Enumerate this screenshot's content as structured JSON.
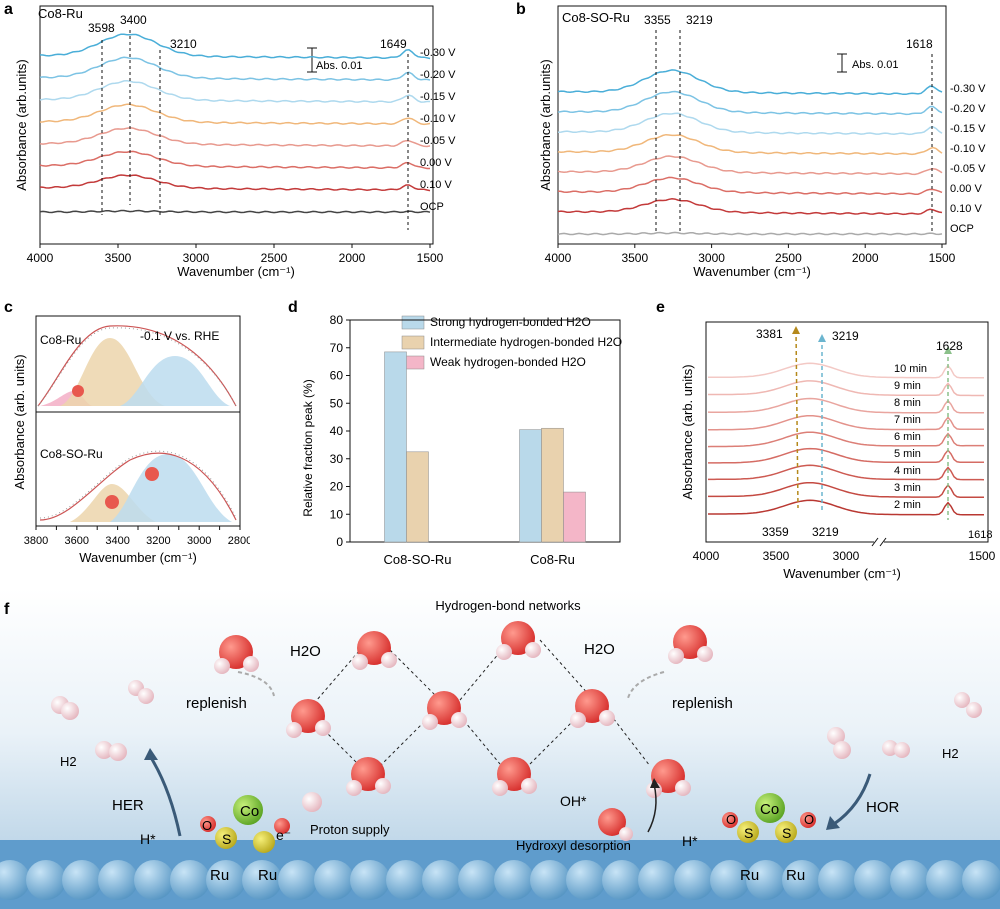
{
  "panels": {
    "a": {
      "label": "a",
      "sample": "Co8-Ru",
      "peaks": [
        "3598",
        "3400",
        "3210",
        "1649"
      ],
      "scale": "Abs. 0.01",
      "curves": [
        {
          "label": "-0.30 V",
          "color": "#4aaed8"
        },
        {
          "label": "-0.20 V",
          "color": "#7cc3e4"
        },
        {
          "label": "-0.15 V",
          "color": "#aed9ee"
        },
        {
          "label": "-0.10 V",
          "color": "#f0b77a"
        },
        {
          "label": "-0.05 V",
          "color": "#e89a8f"
        },
        {
          "label": "0.00 V",
          "color": "#db6e66"
        },
        {
          "label": "0.10 V",
          "color": "#c33a3a"
        },
        {
          "label": "OCP",
          "color": "#444444"
        }
      ],
      "xticks": [
        "4000",
        "3500",
        "3000",
        "2500",
        "2000",
        "1500"
      ],
      "xlabel": "Wavenumber (cm⁻¹)",
      "ylabel": "Absorbance (arb.units)"
    },
    "b": {
      "label": "b",
      "sample": "Co8-SO-Ru",
      "peaks": [
        "3355",
        "3219",
        "1618"
      ],
      "scale": "Abs. 0.01",
      "curves": [
        {
          "label": "-0.30 V",
          "color": "#4aaed8"
        },
        {
          "label": "-0.20 V",
          "color": "#7cc3e4"
        },
        {
          "label": "-0.15 V",
          "color": "#aed9ee"
        },
        {
          "label": "-0.10 V",
          "color": "#f0b77a"
        },
        {
          "label": "-0.05 V",
          "color": "#e89a8f"
        },
        {
          "label": "0.00 V",
          "color": "#db6e66"
        },
        {
          "label": "0.10 V",
          "color": "#c33a3a"
        },
        {
          "label": "OCP",
          "color": "#aaaaaa"
        }
      ],
      "xticks": [
        "4000",
        "3500",
        "3000",
        "2500",
        "2000",
        "1500"
      ],
      "xlabel": "Wavenumber (cm⁻¹)",
      "ylabel": "Absorbance (arb.units)"
    },
    "c": {
      "label": "c",
      "top_sample": "Co8-Ru",
      "bottom_sample": "Co8-SO-Ru",
      "potential": "-0.1 V vs. RHE",
      "xticks": [
        "3800",
        "3700",
        "3600",
        "3500",
        "3400",
        "3300",
        "3200",
        "3100",
        "3000",
        "2900",
        "2800"
      ],
      "xlabel": "Wavenumber (cm⁻¹)",
      "ylabel": "Absorbance (arb. units)"
    },
    "d": {
      "label": "d",
      "ylabel": "Relative fraction peak (%)",
      "ylim": [
        0,
        80
      ],
      "yticks": [
        "0",
        "10",
        "20",
        "30",
        "40",
        "50",
        "60",
        "70",
        "80"
      ]
    },
    "e": {
      "label": "e",
      "peaks_top": [
        "3381",
        "3219",
        "1628"
      ],
      "peaks_bottom": [
        "3359",
        "3219",
        "1618"
      ],
      "times": [
        "10 min",
        "9 min",
        "8 min",
        "7 min",
        "6 min",
        "5 min",
        "4 min",
        "3 min",
        "2 min"
      ],
      "xticks": [
        "4000",
        "3500",
        "3000",
        "1500"
      ],
      "xlabel": "Wavenumber (cm⁻¹)",
      "ylabel": "Absorbance (arb. units)"
    },
    "f": {
      "label": "f",
      "title": "Hydrogen-bond networks",
      "h2o_left": "H2O",
      "h2o_right": "H2O",
      "replenish_left": "replenish",
      "replenish_right": "replenish",
      "h2_left": "H2",
      "h2_right": "H2",
      "her": "HER",
      "hor": "HOR",
      "hstar_left": "H*",
      "hstar_right": "H*",
      "proton_supply": "Proton supply",
      "oh_star": "OH*",
      "hydroxyl_desorption": "Hydroxyl desorption",
      "electron": "e⁻",
      "co": "Co",
      "s": "S",
      "o": "O",
      "ru": "Ru"
    }
  },
  "chart_data": {
    "type": "bar",
    "categories": [
      "Co8-SO-Ru",
      "Co8-Ru"
    ],
    "series": [
      {
        "name": "Strong hydrogen-bonded H2O",
        "color": "#b9d9ea",
        "values": [
          68.5,
          40.5
        ]
      },
      {
        "name": "Intermediate hydrogen-bonded H2O",
        "color": "#e9d2ae",
        "values": [
          32.5,
          41.0
        ]
      },
      {
        "name": "Weak hydrogen-bonded H2O",
        "color": "#f4b6c8",
        "values": [
          null,
          18.0
        ]
      }
    ],
    "ylabel": "Relative fraction peak (%)",
    "ylim": [
      0,
      80
    ]
  }
}
